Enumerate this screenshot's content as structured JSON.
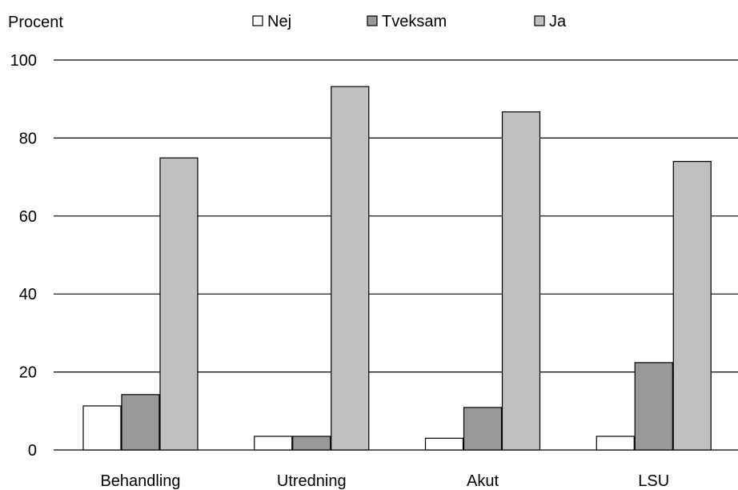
{
  "chart_data": {
    "type": "bar",
    "ylabel": "Procent",
    "xlabel": "",
    "ylim": [
      0,
      100
    ],
    "yticks": [
      0,
      20,
      40,
      60,
      80,
      100
    ],
    "grid": true,
    "legend_position": "top",
    "categories": [
      "Behandling",
      "Utredning",
      "Akut",
      "LSU"
    ],
    "series": [
      {
        "name": "Nej",
        "color": "#ffffff",
        "values": [
          11.3,
          3.5,
          3.0,
          3.5
        ]
      },
      {
        "name": "Tveksam",
        "color": "#999999",
        "values": [
          14.2,
          3.5,
          10.9,
          22.4
        ]
      },
      {
        "name": "Ja",
        "color": "#c0c0c0",
        "values": [
          74.9,
          93.2,
          86.7,
          74.0
        ]
      }
    ]
  }
}
